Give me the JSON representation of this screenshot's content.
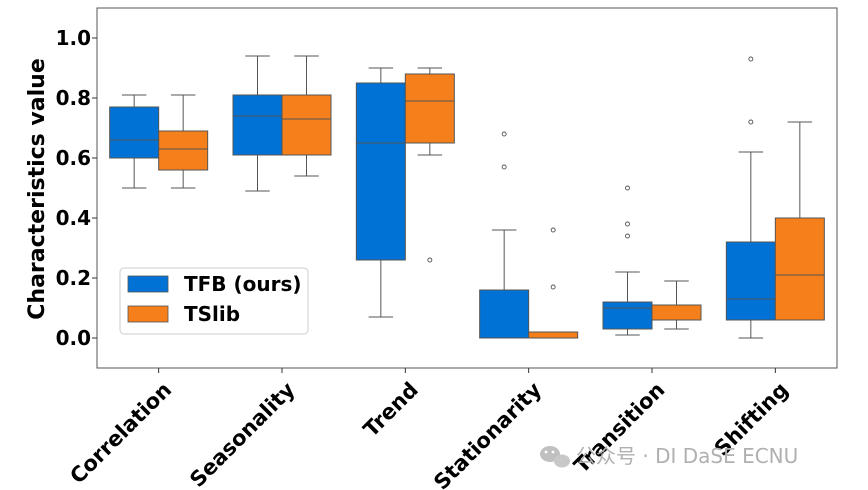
{
  "chart_data": {
    "type": "box",
    "ylabel": "Characteristics value",
    "xlabel": "",
    "ylim": [
      -0.1,
      1.1
    ],
    "yticks": [
      "0.0",
      "0.2",
      "0.4",
      "0.6",
      "0.8",
      "1.0"
    ],
    "categories": [
      "Correlation",
      "Seasonality",
      "Trend",
      "Stationarity",
      "Transition",
      "Shifting"
    ],
    "legend_position": "lower-left",
    "series": [
      {
        "name": "TFB (ours)",
        "color": "#0072d6",
        "boxes": [
          {
            "whislo": 0.5,
            "q1": 0.6,
            "med": 0.66,
            "q3": 0.77,
            "whishi": 0.81,
            "fliers": []
          },
          {
            "whislo": 0.49,
            "q1": 0.61,
            "med": 0.74,
            "q3": 0.81,
            "whishi": 0.94,
            "fliers": []
          },
          {
            "whislo": 0.07,
            "q1": 0.26,
            "med": 0.65,
            "q3": 0.85,
            "whishi": 0.9,
            "fliers": []
          },
          {
            "whislo": 0.0,
            "q1": 0.0,
            "med": 0.0,
            "q3": 0.16,
            "whishi": 0.36,
            "fliers": [
              0.57,
              0.68
            ]
          },
          {
            "whislo": 0.01,
            "q1": 0.03,
            "med": 0.1,
            "q3": 0.12,
            "whishi": 0.22,
            "fliers": [
              0.34,
              0.38,
              0.5
            ]
          },
          {
            "whislo": 0.0,
            "q1": 0.06,
            "med": 0.13,
            "q3": 0.32,
            "whishi": 0.62,
            "fliers": [
              0.72,
              0.93
            ]
          }
        ]
      },
      {
        "name": "TSlib",
        "color": "#f47f1b",
        "boxes": [
          {
            "whislo": 0.5,
            "q1": 0.56,
            "med": 0.63,
            "q3": 0.69,
            "whishi": 0.81,
            "fliers": []
          },
          {
            "whislo": 0.54,
            "q1": 0.61,
            "med": 0.73,
            "q3": 0.81,
            "whishi": 0.94,
            "fliers": []
          },
          {
            "whislo": 0.61,
            "q1": 0.65,
            "med": 0.79,
            "q3": 0.88,
            "whishi": 0.9,
            "fliers": [
              0.26
            ]
          },
          {
            "whislo": 0.0,
            "q1": 0.0,
            "med": 0.0,
            "q3": 0.02,
            "whishi": 0.02,
            "fliers": [
              0.17,
              0.36
            ]
          },
          {
            "whislo": 0.03,
            "q1": 0.06,
            "med": 0.11,
            "q3": 0.11,
            "whishi": 0.19,
            "fliers": []
          },
          {
            "whislo": 0.06,
            "q1": 0.06,
            "med": 0.21,
            "q3": 0.4,
            "whishi": 0.72,
            "fliers": []
          }
        ]
      }
    ]
  },
  "watermark": "公众号 · DI DaSE ECNU"
}
